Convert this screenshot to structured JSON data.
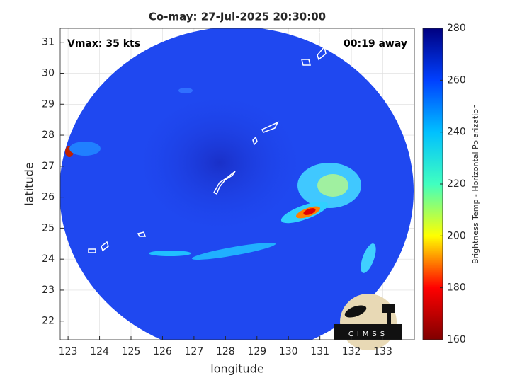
{
  "chart_data": {
    "type": "image",
    "title": "Co-may: 27-Jul-2025 20:30:00",
    "annotations": [
      "Vmax: 35 kts",
      "00:19 away"
    ],
    "xlabel": "longitude",
    "ylabel": "latitude",
    "xlim": [
      122.75,
      134
    ],
    "xticks": [
      123,
      124,
      125,
      126,
      127,
      128,
      129,
      130,
      131,
      132,
      133
    ],
    "ylim": [
      21.4,
      31.45
    ],
    "yticks": [
      22,
      23,
      24,
      25,
      26,
      27,
      28,
      29,
      30,
      31
    ],
    "grid": true,
    "colorbar": {
      "label": "Brightness Temp - Horizontal Polarization",
      "clim": [
        160,
        280
      ],
      "ticks": [
        160,
        180,
        200,
        220,
        240,
        260,
        280
      ],
      "colormap": [
        "#800000",
        "#ff0000",
        "#ffff00",
        "#40ffc0",
        "#00c0ff",
        "#0040ff",
        "#000080"
      ]
    },
    "logo": "CIMSS"
  }
}
